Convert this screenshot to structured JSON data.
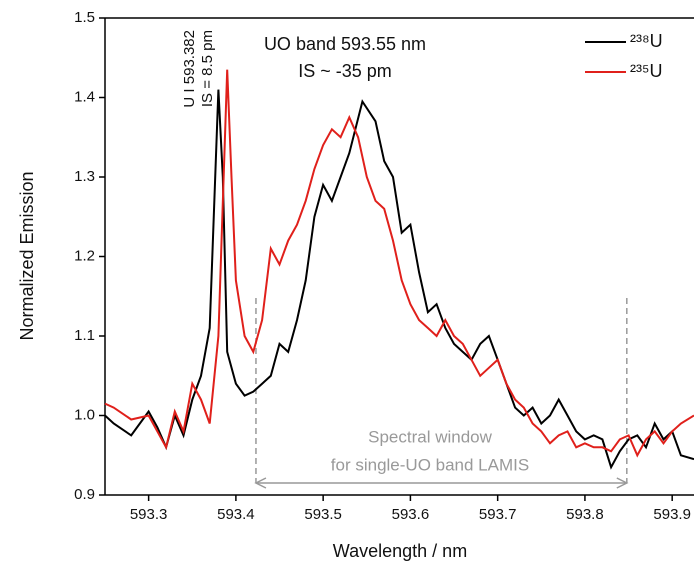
{
  "chart_data": {
    "type": "line",
    "x_label": "Wavelength / nm",
    "y_label": "Normalized Emission",
    "annotations": [
      "UO band 593.55 nm",
      "IS ~ -35 pm",
      "U I 593.382",
      "IS = 8.5 pm",
      "Spectral window",
      "for single-UO band LAMIS"
    ],
    "window_x": [
      593.423,
      593.848
    ],
    "xlim": [
      593.25,
      593.925
    ],
    "xticks": [
      593.3,
      593.4,
      593.5,
      593.6,
      593.7,
      593.8,
      593.9
    ],
    "ylim": [
      0.9,
      1.5
    ],
    "yticks": [
      0.9,
      {
        "value": 1.0,
        "label": "1.0"
      },
      1.1,
      1.2,
      1.3,
      1.4,
      {
        "value": 1.5,
        "label": "1.5"
      }
    ],
    "legend": "upper right",
    "series": [
      {
        "name": "²³⁸U",
        "color": "#000000",
        "x": [
          593.25,
          593.26,
          593.28,
          593.3,
          593.31,
          593.32,
          593.33,
          593.34,
          593.35,
          593.36,
          593.37,
          593.38,
          593.385,
          593.39,
          593.4,
          593.41,
          593.42,
          593.43,
          593.44,
          593.45,
          593.46,
          593.47,
          593.48,
          593.49,
          593.5,
          593.51,
          593.52,
          593.53,
          593.545,
          593.56,
          593.57,
          593.58,
          593.59,
          593.6,
          593.61,
          593.62,
          593.63,
          593.64,
          593.65,
          593.66,
          593.67,
          593.68,
          593.69,
          593.7,
          593.71,
          593.72,
          593.73,
          593.74,
          593.75,
          593.76,
          593.77,
          593.78,
          593.79,
          593.8,
          593.81,
          593.82,
          593.83,
          593.84,
          593.85,
          593.86,
          593.87,
          593.88,
          593.89,
          593.9,
          593.91,
          593.925
        ],
        "values": [
          1.0,
          0.99,
          0.975,
          1.005,
          0.985,
          0.96,
          1.0,
          0.975,
          1.02,
          1.05,
          1.11,
          1.41,
          1.3,
          1.08,
          1.04,
          1.025,
          1.03,
          1.04,
          1.05,
          1.09,
          1.08,
          1.12,
          1.17,
          1.25,
          1.29,
          1.27,
          1.3,
          1.33,
          1.395,
          1.37,
          1.32,
          1.3,
          1.23,
          1.24,
          1.18,
          1.13,
          1.14,
          1.11,
          1.09,
          1.08,
          1.07,
          1.09,
          1.1,
          1.07,
          1.04,
          1.01,
          1.0,
          1.01,
          0.99,
          1.0,
          1.02,
          1.0,
          0.98,
          0.97,
          0.975,
          0.97,
          0.935,
          0.955,
          0.97,
          0.975,
          0.96,
          0.99,
          0.97,
          0.98,
          0.95,
          0.945
        ]
      },
      {
        "name": "²³⁵U",
        "color": "#e0201b",
        "x": [
          593.25,
          593.26,
          593.28,
          593.3,
          593.32,
          593.33,
          593.34,
          593.35,
          593.36,
          593.37,
          593.38,
          593.39,
          593.395,
          593.4,
          593.41,
          593.42,
          593.43,
          593.44,
          593.45,
          593.46,
          593.47,
          593.48,
          593.49,
          593.5,
          593.51,
          593.52,
          593.53,
          593.54,
          593.55,
          593.56,
          593.57,
          593.58,
          593.59,
          593.6,
          593.61,
          593.62,
          593.63,
          593.64,
          593.65,
          593.66,
          593.67,
          593.68,
          593.69,
          593.7,
          593.71,
          593.72,
          593.73,
          593.74,
          593.75,
          593.76,
          593.77,
          593.78,
          593.79,
          593.8,
          593.81,
          593.82,
          593.83,
          593.84,
          593.85,
          593.86,
          593.87,
          593.88,
          593.89,
          593.9,
          593.91,
          593.925
        ],
        "values": [
          1.015,
          1.01,
          0.995,
          1.0,
          0.96,
          1.005,
          0.98,
          1.04,
          1.02,
          0.99,
          1.1,
          1.435,
          1.3,
          1.17,
          1.1,
          1.08,
          1.12,
          1.21,
          1.19,
          1.22,
          1.24,
          1.27,
          1.31,
          1.34,
          1.36,
          1.35,
          1.375,
          1.35,
          1.3,
          1.27,
          1.26,
          1.22,
          1.17,
          1.14,
          1.12,
          1.11,
          1.1,
          1.12,
          1.1,
          1.09,
          1.07,
          1.05,
          1.06,
          1.07,
          1.04,
          1.02,
          1.01,
          0.99,
          0.98,
          0.965,
          0.975,
          0.98,
          0.96,
          0.965,
          0.96,
          0.96,
          0.955,
          0.97,
          0.975,
          0.95,
          0.97,
          0.98,
          0.965,
          0.98,
          0.99,
          1.0
        ]
      }
    ]
  }
}
